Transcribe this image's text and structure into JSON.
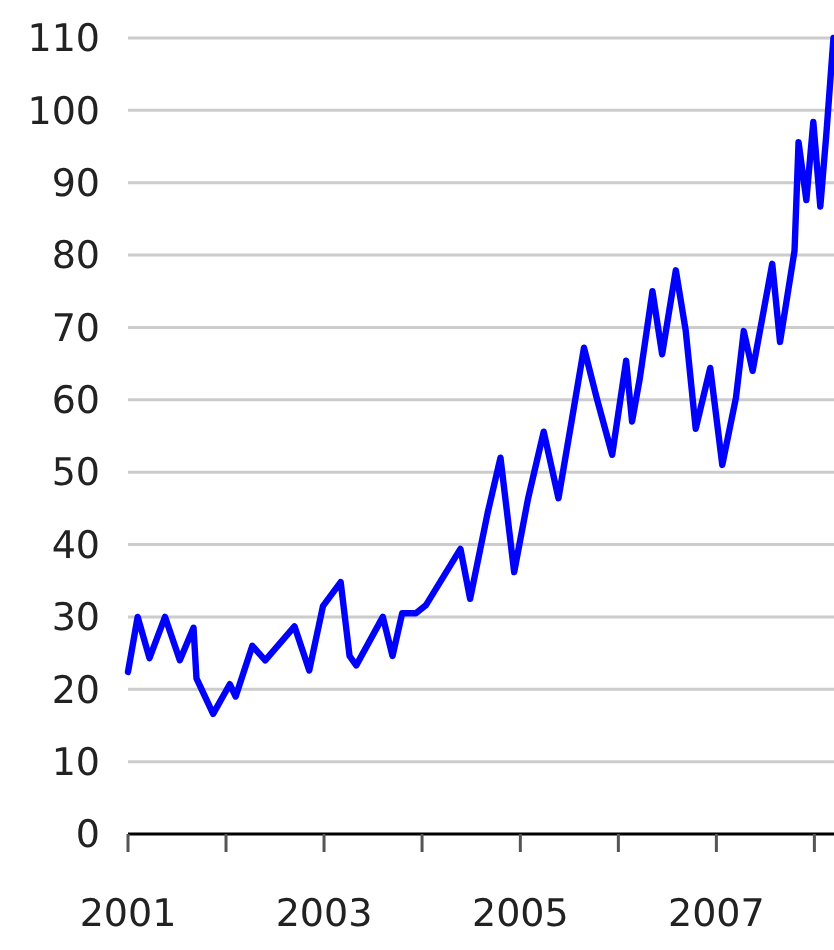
{
  "chart_data": {
    "type": "line",
    "x": [
      "2001-01-01",
      "2001-02-06",
      "2001-03-22",
      "2001-05-19",
      "2001-07-13",
      "2001-09-02",
      "2001-09-13",
      "2001-11-14",
      "2002-01-15",
      "2002-02-06",
      "2002-04-09",
      "2002-05-27",
      "2002-09-13",
      "2002-11-07",
      "2002-12-28",
      "2003-03-04",
      "2003-04-06",
      "2003-05-01",
      "2003-08-08",
      "2003-09-13",
      "2003-10-19",
      "2003-12-09",
      "2004-01-15",
      "2004-05-23",
      "2004-06-28",
      "2004-09-02",
      "2004-10-19",
      "2004-12-09",
      "2005-01-30",
      "2005-03-29",
      "2005-05-23",
      "2005-07-13",
      "2005-08-26",
      "2005-10-12",
      "2005-12-09",
      "2006-01-30",
      "2006-02-21",
      "2006-03-22",
      "2006-05-08",
      "2006-06-13",
      "2006-08-03",
      "2006-09-09",
      "2006-10-16",
      "2006-12-09",
      "2007-01-23",
      "2007-03-15",
      "2007-04-13",
      "2007-05-16",
      "2007-07-28",
      "2007-08-26",
      "2007-10-19",
      "2007-11-03",
      "2007-12-02",
      "2007-12-28",
      "2008-01-23",
      "2008-02-14",
      "2008-03-12"
    ],
    "series": [
      {
        "color": "#0000ff",
        "values": [
          22.4,
          30,
          24.3,
          30,
          24,
          28.5,
          21.5,
          16.6,
          20.7,
          19,
          26,
          24,
          28.7,
          22.6,
          31.5,
          34.8,
          24.6,
          23.3,
          30,
          24.6,
          30.5,
          30.5,
          31.6,
          39.4,
          32.5,
          44.5,
          52,
          36.2,
          46.4,
          55.6,
          46.4,
          57.5,
          67.2,
          60.3,
          52.4,
          65.4,
          57,
          63,
          75,
          66.3,
          77.9,
          69.5,
          56,
          64.4,
          51,
          60.3,
          69.5,
          64,
          78.8,
          68,
          80.6,
          95.6,
          87.6,
          98.4,
          86.7,
          96.5,
          110
        ]
      }
    ],
    "xlim": [
      "2001-01-01",
      "2008-03-14"
    ],
    "xticks": [
      {
        "value": "2001-01-01",
        "label": "2001"
      },
      {
        "value": "2002-01-01",
        "label": null
      },
      {
        "value": "2003-01-01",
        "label": "2003"
      },
      {
        "value": "2004-01-01",
        "label": null
      },
      {
        "value": "2005-01-01",
        "label": "2005"
      },
      {
        "value": "2006-01-01",
        "label": null
      },
      {
        "value": "2007-01-01",
        "label": "2007"
      },
      {
        "value": "2008-01-01",
        "label": null
      }
    ],
    "ylim": [
      0,
      110
    ],
    "yticks": [
      0,
      10,
      20,
      30,
      40,
      50,
      60,
      70,
      80,
      90,
      100,
      110
    ],
    "grid": "y",
    "line_style": "solid",
    "marker": "none"
  }
}
